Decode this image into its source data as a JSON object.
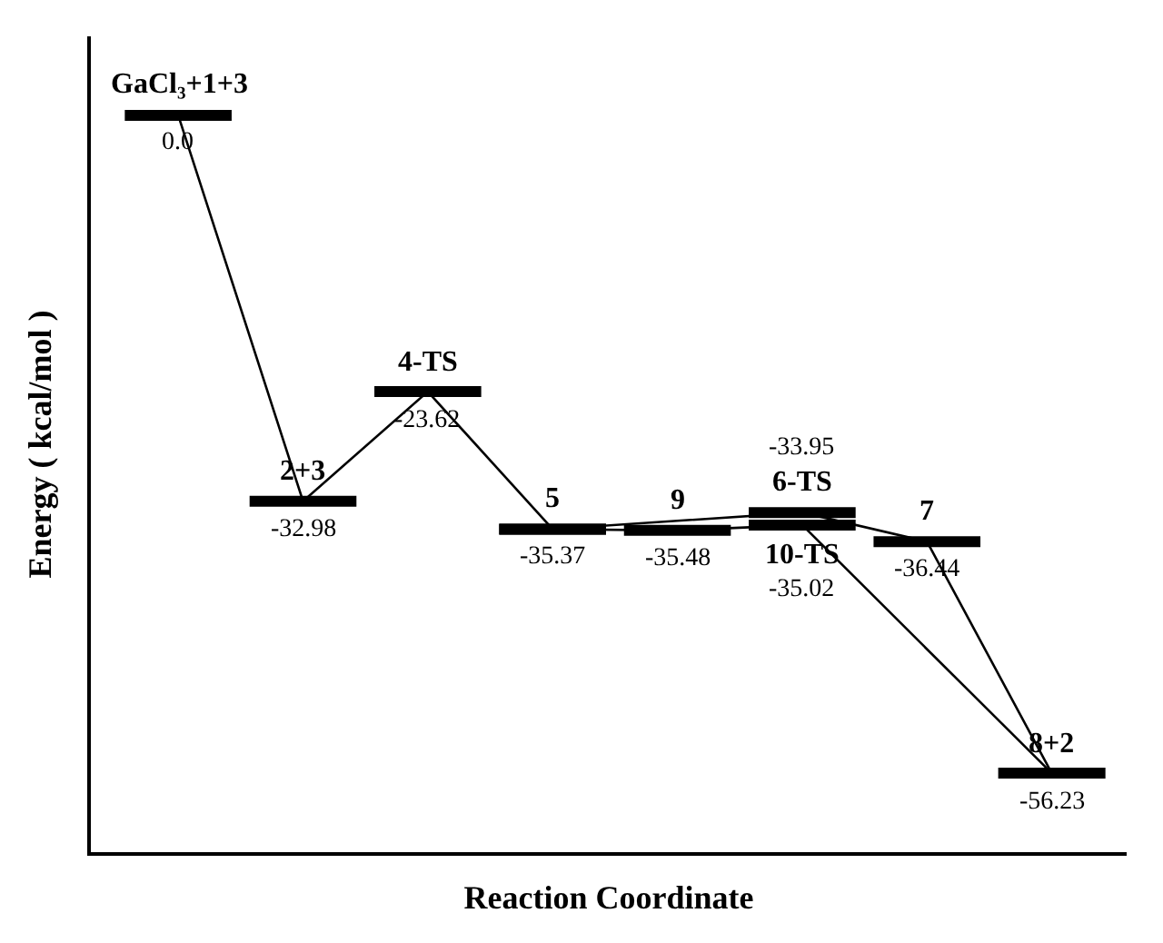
{
  "chart_data": {
    "type": "line",
    "xlabel": "Reaction Coordinate",
    "ylabel": "Energy ( kcal/mol )",
    "categories": [
      null,
      null,
      null,
      null,
      null,
      null,
      null,
      null
    ],
    "series": [
      {
        "color": "#000000",
        "values": [
          0.0,
          -32.98,
          -23.62,
          -35.37,
          null,
          -33.95,
          -36.44,
          -56.23
        ],
        "value_labels": [
          "0.0",
          "-32.98",
          "-23.62",
          "-35.37",
          null,
          "-33.95",
          "-36.44",
          "-56.23"
        ]
      },
      {
        "color": "#000000",
        "values": [
          null,
          null,
          null,
          -35.37,
          -35.48,
          -35.02,
          null,
          -56.23
        ],
        "value_labels": [
          null,
          null,
          null,
          null,
          "-35.48",
          "-35.02",
          null,
          null
        ]
      }
    ],
    "annotations": [
      {
        "text": "GaCl₃+1+3",
        "y": 0.0
      },
      {
        "text": "2+3",
        "y": -32.98
      },
      {
        "text": "4-TS",
        "y": -23.62
      },
      {
        "text": "5",
        "y": -35.37
      },
      {
        "text": "9",
        "y": -35.48
      },
      {
        "text": "6-TS",
        "y": -33.95
      },
      {
        "text": "10-TS",
        "y": -35.02
      },
      {
        "text": "7",
        "y": -36.44
      },
      {
        "text": "8+2",
        "y": -56.23
      }
    ]
  }
}
